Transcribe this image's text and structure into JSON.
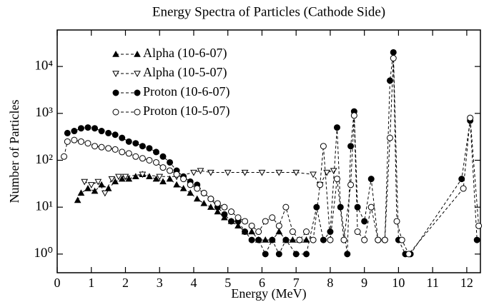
{
  "chart_data": {
    "type": "line",
    "title": "Energy Spectra of Particles (Cathode Side)",
    "x_label": "Energy (MeV)",
    "y_label": "Number of Particles",
    "log_y": true,
    "line_style": "dashed",
    "legend": "upper-left",
    "xlim": [
      0,
      12.4
    ],
    "xticks": [
      0,
      1,
      2,
      3,
      4,
      5,
      6,
      7,
      8,
      9,
      10,
      11,
      12
    ],
    "ylim": [
      0.4,
      60000
    ],
    "yticks": [
      {
        "value": 1,
        "label": "10⁰"
      },
      {
        "value": 10,
        "label": "10¹"
      },
      {
        "value": 100,
        "label": "10²"
      },
      {
        "value": 1000,
        "label": "10³"
      },
      {
        "value": 10000,
        "label": "10⁴"
      }
    ],
    "series": [
      {
        "name": "Alpha (10-6-07)",
        "marker": "triangle-up",
        "filled": true,
        "color": "#000000",
        "x": [
          0.6,
          0.7,
          0.9,
          1.1,
          1.3,
          1.5,
          1.7,
          1.9,
          2.1,
          2.3,
          2.5,
          2.7,
          2.9,
          3.1,
          3.3,
          3.5,
          3.7,
          3.9,
          4.1,
          4.3,
          4.5,
          4.7,
          4.9,
          5.1,
          5.3,
          5.5,
          5.7,
          5.9,
          6.1,
          6.3,
          6.5,
          6.7,
          6.9,
          7.1,
          7.3
        ],
        "values": [
          14,
          20,
          25,
          22,
          30,
          25,
          35,
          40,
          40,
          45,
          50,
          45,
          40,
          35,
          40,
          30,
          25,
          20,
          15,
          12,
          10,
          8,
          6,
          5,
          4,
          3,
          3,
          2,
          2,
          2,
          3,
          2,
          2,
          2,
          2
        ]
      },
      {
        "name": "Alpha (10-5-07)",
        "marker": "triangle-down",
        "filled": false,
        "color": "#000000",
        "x": [
          0.8,
          1.0,
          1.2,
          1.4,
          1.6,
          1.8,
          2.0,
          2.5,
          3.0,
          3.5,
          4.0,
          4.2,
          4.5,
          5.0,
          5.5,
          6.0,
          6.5,
          7.0,
          7.5,
          7.7,
          7.9,
          8.1
        ],
        "values": [
          35,
          30,
          35,
          20,
          40,
          45,
          45,
          50,
          45,
          45,
          55,
          60,
          55,
          55,
          55,
          55,
          55,
          55,
          50,
          30,
          55,
          60
        ]
      },
      {
        "name": "Proton (10-6-07)",
        "marker": "circle",
        "filled": true,
        "color": "#000000",
        "x": [
          0.3,
          0.5,
          0.7,
          0.9,
          1.1,
          1.3,
          1.5,
          1.7,
          1.9,
          2.1,
          2.3,
          2.5,
          2.7,
          2.9,
          3.1,
          3.3,
          3.5,
          3.7,
          3.9,
          4.1,
          4.3,
          4.5,
          4.7,
          4.9,
          5.1,
          5.3,
          5.5,
          5.7,
          5.9,
          6.1,
          6.3,
          6.5,
          6.7,
          7.0,
          7.3,
          7.6,
          7.8,
          8.0,
          8.2,
          8.3,
          8.5,
          8.6,
          8.7,
          8.8,
          9.0,
          9.2,
          9.4,
          9.6,
          9.75,
          9.85,
          10.0,
          10.2,
          10.35,
          11.85,
          12.1,
          12.3
        ],
        "values": [
          380,
          420,
          480,
          500,
          480,
          420,
          380,
          350,
          300,
          250,
          230,
          200,
          180,
          150,
          120,
          90,
          60,
          45,
          35,
          30,
          20,
          15,
          10,
          7,
          5,
          5,
          3,
          2,
          2,
          1,
          2,
          1,
          2,
          1,
          1,
          10,
          2,
          3,
          500,
          10,
          1,
          200,
          1100,
          10,
          5,
          40,
          2,
          2,
          5000,
          20000,
          2,
          1,
          1,
          40,
          700,
          2
        ]
      },
      {
        "name": "Proton (10-5-07)",
        "marker": "circle",
        "filled": false,
        "color": "#000000",
        "x": [
          0.2,
          0.3,
          0.5,
          0.7,
          0.9,
          1.1,
          1.3,
          1.5,
          1.7,
          1.9,
          2.1,
          2.3,
          2.5,
          2.7,
          2.9,
          3.1,
          3.3,
          3.5,
          3.7,
          3.9,
          4.1,
          4.3,
          4.5,
          4.7,
          4.9,
          5.1,
          5.3,
          5.5,
          5.7,
          5.9,
          6.1,
          6.3,
          6.5,
          6.7,
          6.9,
          7.1,
          7.3,
          7.5,
          7.7,
          7.8,
          8.0,
          8.2,
          8.4,
          8.6,
          8.7,
          8.8,
          9.0,
          9.2,
          9.4,
          9.6,
          9.75,
          9.85,
          9.95,
          10.1,
          10.3,
          11.9,
          12.1,
          12.35
        ],
        "values": [
          120,
          250,
          270,
          250,
          230,
          200,
          190,
          180,
          170,
          150,
          140,
          120,
          110,
          100,
          90,
          70,
          60,
          50,
          40,
          30,
          25,
          20,
          15,
          12,
          10,
          8,
          6,
          5,
          4,
          3,
          5,
          6,
          4,
          10,
          3,
          2,
          3,
          2,
          30,
          200,
          2,
          40,
          2,
          30,
          900,
          3,
          2,
          10,
          2,
          2,
          300,
          15000,
          5,
          2,
          1,
          25,
          800,
          4
        ]
      }
    ]
  }
}
